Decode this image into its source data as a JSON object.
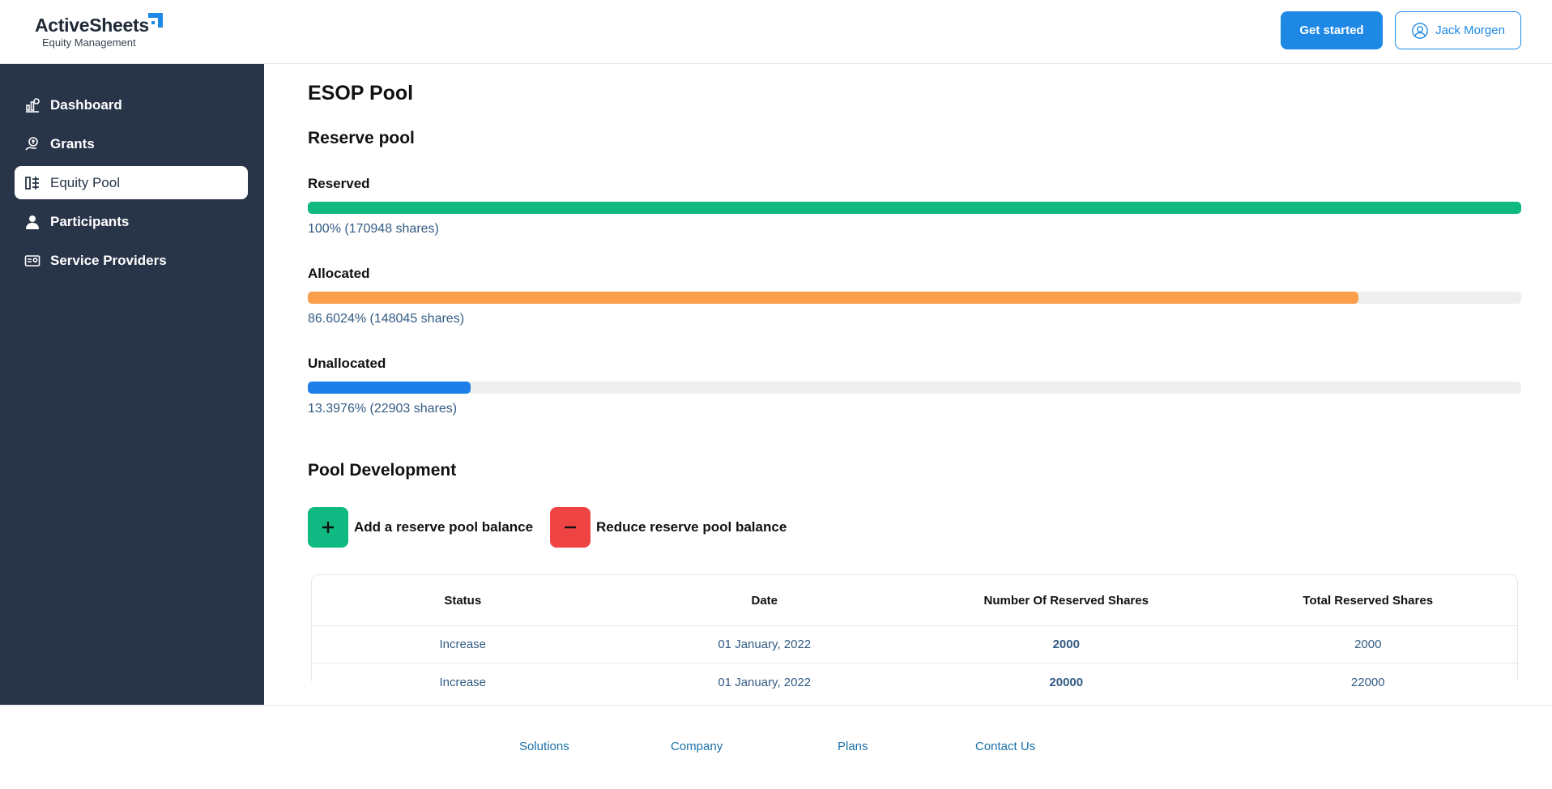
{
  "brand": {
    "name": "ActiveSheets",
    "tagline": "Equity Management"
  },
  "header": {
    "get_started": "Get started",
    "user_name": "Jack Morgen"
  },
  "sidebar": {
    "items": [
      {
        "label": "Dashboard",
        "icon": "dashboard-icon"
      },
      {
        "label": "Grants",
        "icon": "grants-icon"
      },
      {
        "label": "Equity Pool",
        "icon": "equity-pool-icon",
        "active": true
      },
      {
        "label": "Participants",
        "icon": "person-icon"
      },
      {
        "label": "Service Providers",
        "icon": "id-card-icon"
      }
    ]
  },
  "page": {
    "title": "ESOP Pool",
    "reserve_heading": "Reserve pool",
    "bars": [
      {
        "label": "Reserved",
        "text": "100% (170948 shares)",
        "percent": 100,
        "color": "#10b981"
      },
      {
        "label": "Allocated",
        "text": "86.6024% (148045 shares)",
        "percent": 86.6024,
        "color": "#fb9f4a"
      },
      {
        "label": "Unallocated",
        "text": "13.3976% (22903 shares)",
        "percent": 13.3976,
        "color": "#1e7fe8"
      }
    ],
    "development_heading": "Pool Development",
    "add_label": "Add a reserve pool balance",
    "reduce_label": "Reduce reserve pool balance"
  },
  "table": {
    "headers": [
      "Status",
      "Date",
      "Number Of Reserved Shares",
      "Total Reserved Shares"
    ],
    "rows": [
      [
        "Increase",
        "01 January, 2022",
        "2000",
        "2000"
      ],
      [
        "Increase",
        "01 January, 2022",
        "20000",
        "22000"
      ]
    ]
  },
  "footer": {
    "links": [
      "Solutions",
      "Company",
      "Plans",
      "Contact Us"
    ]
  },
  "colors": {
    "sidebar": "#283448",
    "accent": "#1e88e5",
    "add": "#10b981",
    "reduce": "#ef4444"
  }
}
